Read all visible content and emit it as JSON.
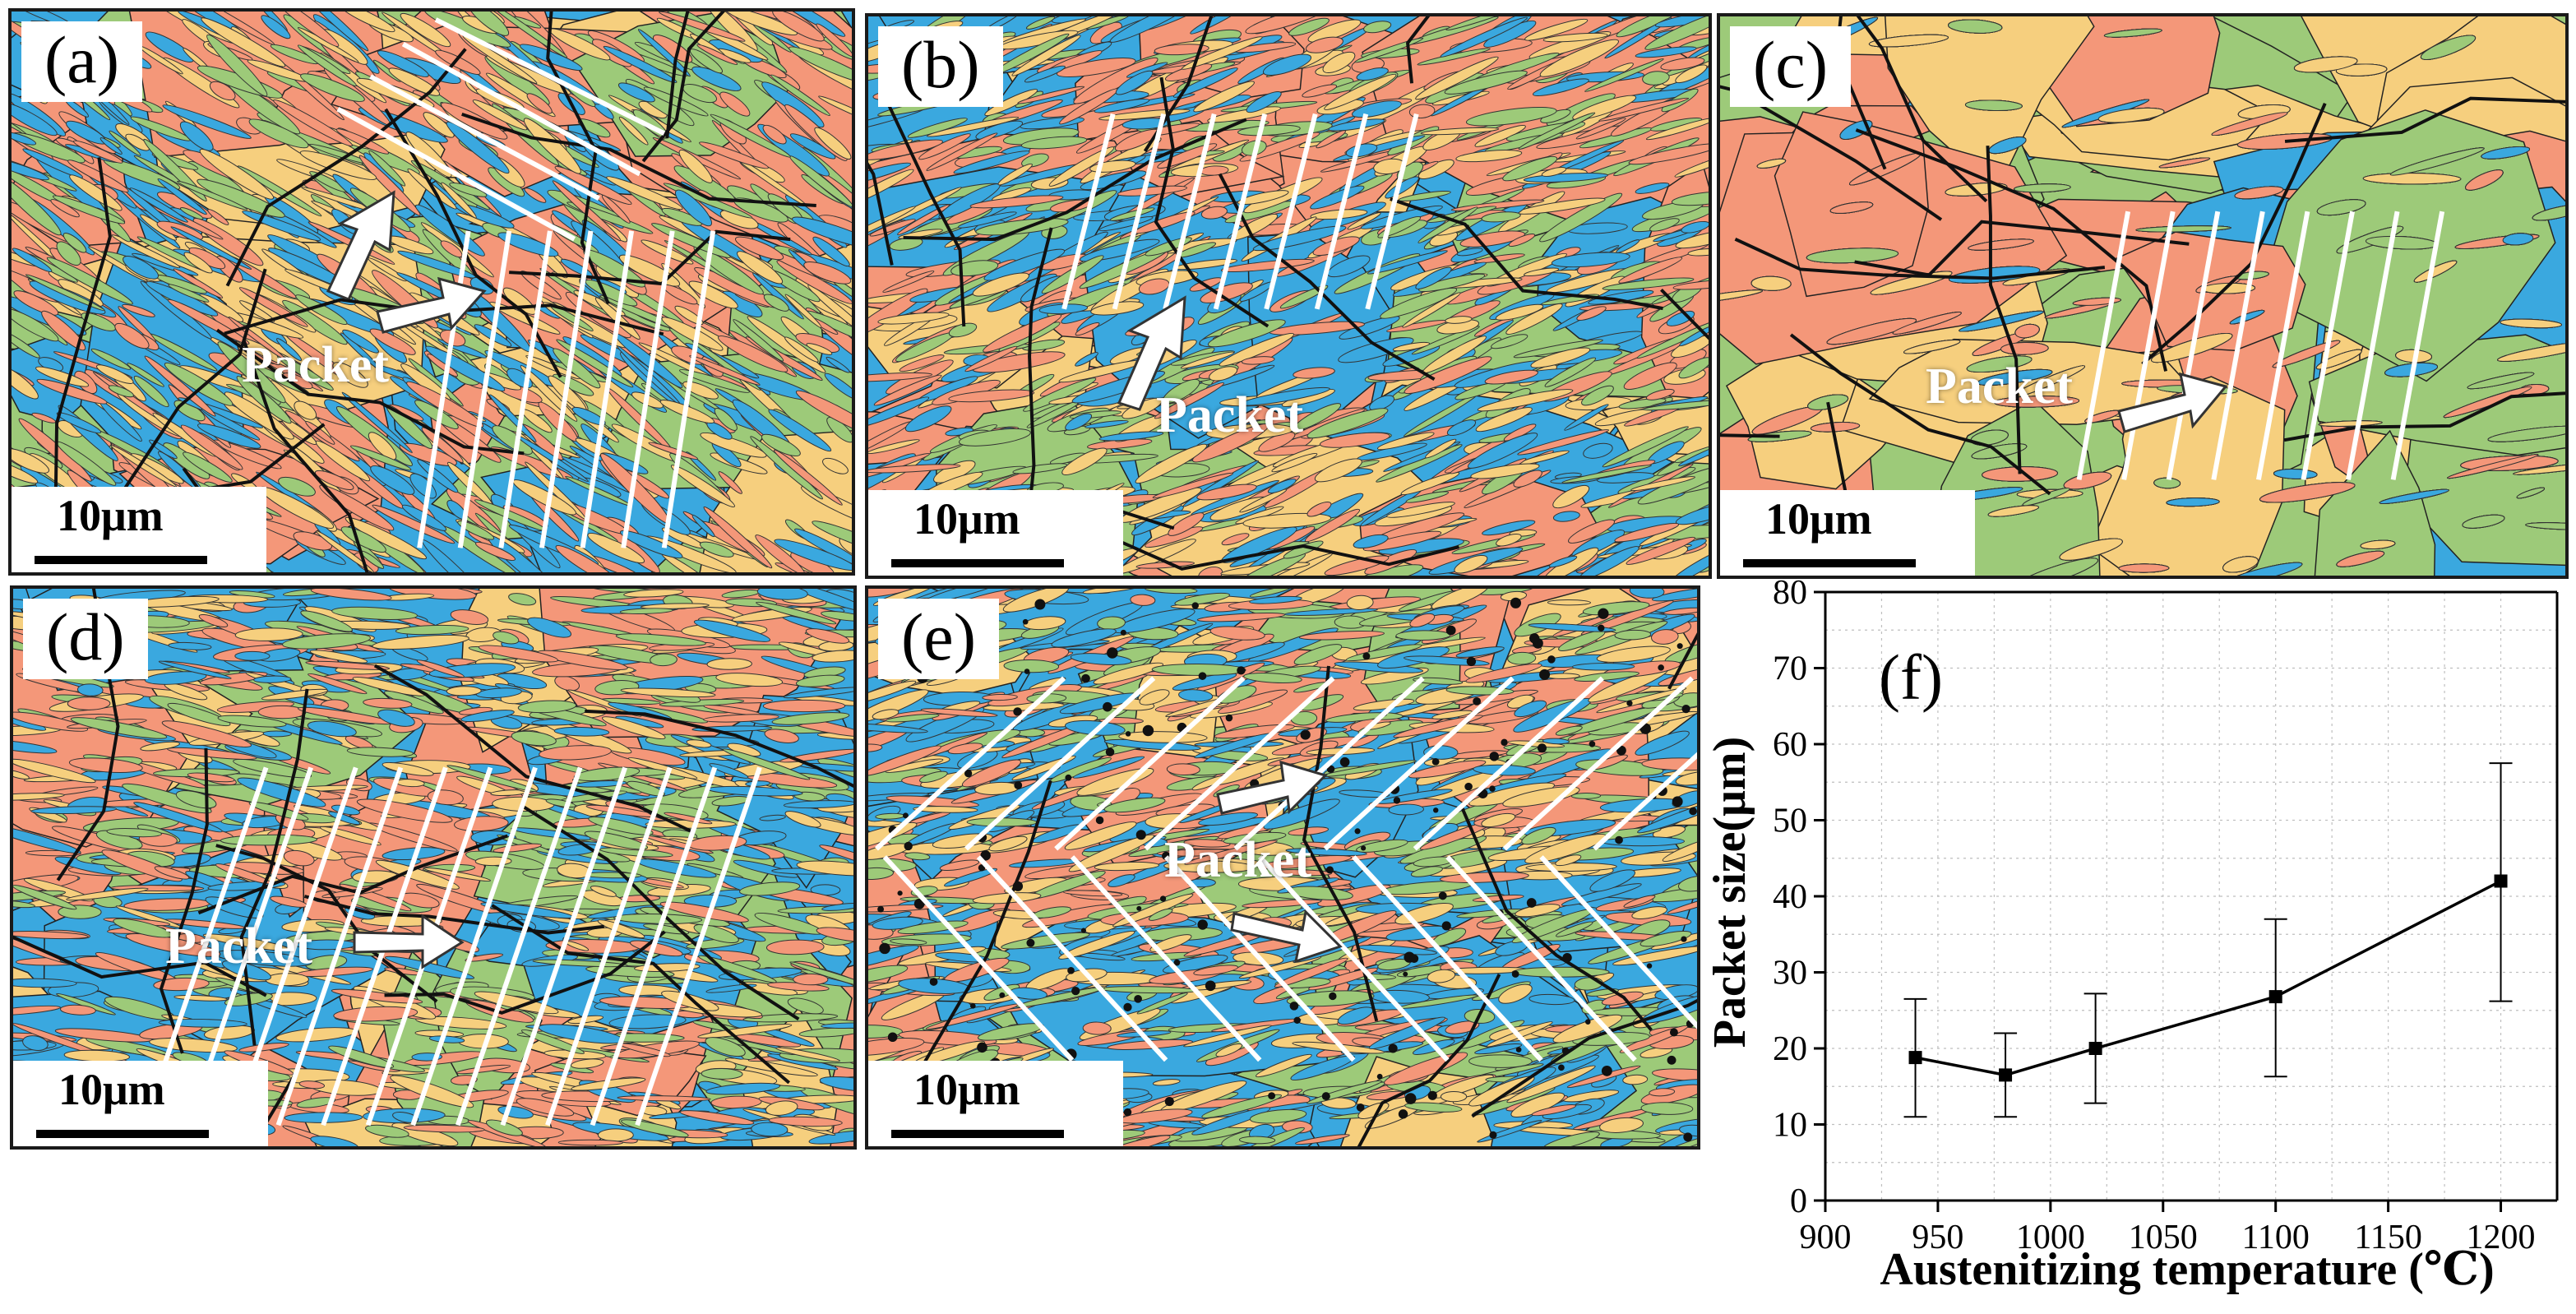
{
  "panels": [
    {
      "label": "(a)",
      "scale": "10μm",
      "annotation": "Packet"
    },
    {
      "label": "(b)",
      "scale": "10μm",
      "annotation": "Packet"
    },
    {
      "label": "(c)",
      "scale": "10μm",
      "annotation": "Packet"
    },
    {
      "label": "(d)",
      "scale": "10μm",
      "annotation": "Packet"
    },
    {
      "label": "(e)",
      "scale": "10μm",
      "annotation": "Packet"
    }
  ],
  "colors": {
    "blue": "#3aa8df",
    "green": "#9dca79",
    "salmon": "#f49779",
    "yellow": "#f6cf7e",
    "boundary": "#111111"
  },
  "chart_data": {
    "type": "line",
    "panel_label": "(f)",
    "xlabel": "Austenitizing temperature (℃)",
    "ylabel": "Packet size(μm)",
    "xlim": [
      900,
      1225
    ],
    "ylim": [
      0,
      80
    ],
    "xticks": [
      900,
      950,
      1000,
      1050,
      1100,
      1150,
      1200
    ],
    "yticks": [
      0,
      10,
      20,
      30,
      40,
      50,
      60,
      70,
      80
    ],
    "grid": true,
    "x": [
      940,
      980,
      1020,
      1100,
      1200
    ],
    "y": [
      18.8,
      16.5,
      20.0,
      26.8,
      42.0
    ],
    "yerr_low": [
      11.0,
      11.0,
      12.8,
      16.3,
      26.2
    ],
    "yerr_high": [
      26.5,
      22.0,
      27.2,
      37.0,
      57.5
    ]
  }
}
